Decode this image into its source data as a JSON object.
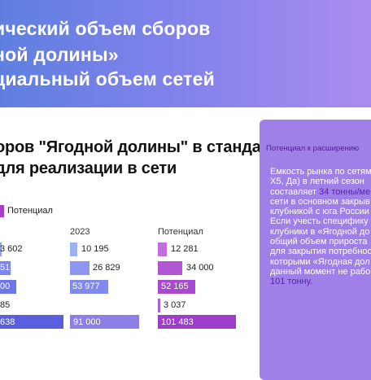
{
  "banner": {
    "line1": "ический объем сборов",
    "line2": "ной долины»",
    "line3": "циальный объем сетей",
    "colors": [
      "#5f7fe0",
      "#ab8cf0"
    ]
  },
  "heading": {
    "line1": "оров \"Ягодной долины\" в стандартном",
    "line2": "для реализации в сети"
  },
  "legend": {
    "label": "Потенциал",
    "color": "#a53ec9"
  },
  "chart_data": {
    "type": "bar",
    "columns": [
      "",
      "2023",
      "Потенциал"
    ],
    "rows": [
      {
        "values": [
          "3 602",
          "10 195",
          "12 281"
        ]
      },
      {
        "values": [
          "51",
          "26 829",
          "34 000"
        ]
      },
      {
        "values": [
          "00",
          "53 977",
          "52 165"
        ]
      },
      {
        "values": [
          "85",
          "",
          "3 037"
        ]
      },
      {
        "values": [
          "638",
          "91 000",
          "101 483"
        ]
      }
    ]
  },
  "panel": {
    "title": "Потенциал к расширению",
    "lines": [
      "Емкость рынка по сетям",
      "X5, Да) в летний сезон",
      "составляет",
      "сети в основном закрыв",
      "клубникой с юга России",
      "Если  учесть специфику",
      "клубники в «Ягодной до",
      "общий объем прироста",
      "для закрытия потребнос",
      "которыми «Ягодная дол",
      "данный момент не рабо",
      "101 тонну."
    ],
    "highlight": "34 тонны/ме"
  }
}
